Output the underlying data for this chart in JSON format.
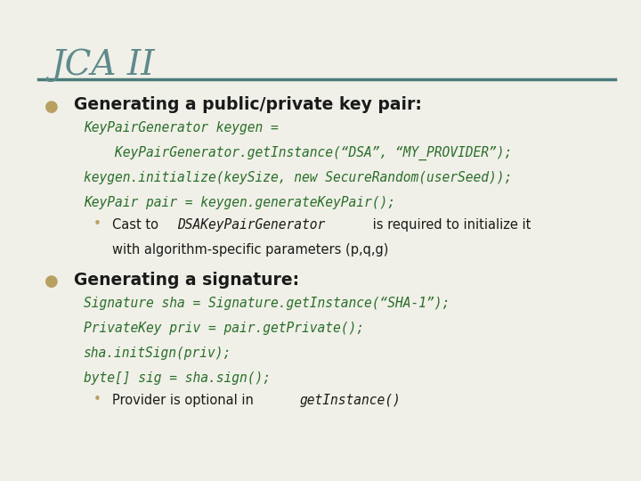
{
  "title": "JCA II",
  "title_color": "#5f8a8b",
  "background_color": "#f0f0e8",
  "border_color": "#5f8a8b",
  "bullet_color": "#b8a060",
  "code_color": "#2a6e2a",
  "text_color": "#1a1a1a",
  "line_color": "#4a7a7a",
  "bullet1_header": "Generating a public/private key pair:",
  "bullet1_code": [
    "KeyPairGenerator keygen =",
    "    KeyPairGenerator.getInstance(“DSA”, “MY_PROVIDER”);",
    "keygen.initialize(keySize, new SecureRandom(userSeed));",
    "KeyPair pair = keygen.generateKeyPair();"
  ],
  "bullet1_sub_line1_plain1": "Cast to ",
  "bullet1_sub_line1_italic": "DSAKeyPairGenerator",
  "bullet1_sub_line1_plain2": " is required to initialize it",
  "bullet1_sub_line2": "with algorithm-specific parameters (p,q,g)",
  "bullet2_header": "Generating a signature:",
  "bullet2_code": [
    "Signature sha = Signature.getInstance(“SHA-1”);",
    "PrivateKey priv = pair.getPrivate();",
    "sha.initSign(priv);",
    "byte[] sig = sha.sign();"
  ],
  "bullet2_sub_line1_plain": "Provider is optional in ",
  "bullet2_sub_line1_italic": "getInstance()"
}
